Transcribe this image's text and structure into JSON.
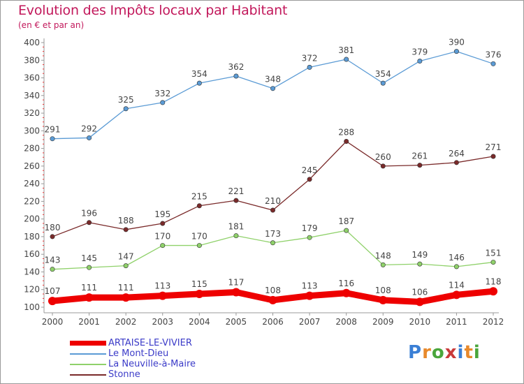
{
  "header": {
    "title": "Evolution des Impôts locaux par Habitant",
    "subtitle": "(en € et par an)"
  },
  "logo": {
    "text": "Proxiti",
    "colors": [
      "#3a7fd5",
      "#e8892b",
      "#4aa63c",
      "#c93a3a",
      "#3a7fd5",
      "#e8892b",
      "#4aa63c"
    ]
  },
  "chart_data": {
    "type": "line",
    "title": "Evolution des Impôts locaux par Habitant",
    "subtitle": "(en € et par an)",
    "xlabel": "",
    "ylabel": "",
    "x": [
      "2000",
      "2001",
      "2002",
      "2003",
      "2004",
      "2005",
      "2006",
      "2007",
      "2008",
      "2009",
      "2010",
      "2011",
      "2012"
    ],
    "ylim": [
      100,
      400
    ],
    "yticks": [
      100,
      120,
      140,
      160,
      180,
      200,
      220,
      240,
      260,
      280,
      300,
      320,
      340,
      360,
      380,
      400
    ],
    "grid": false,
    "legend_position": "bottom-left",
    "series": [
      {
        "name": "ARTAISE-LE-VIVIER",
        "color": "#ee0000",
        "bold": true,
        "values": [
          107,
          111,
          111,
          113,
          115,
          117,
          108,
          113,
          116,
          108,
          106,
          114,
          118
        ]
      },
      {
        "name": "Le Mont-Dieu",
        "color": "#5b9bd5",
        "bold": false,
        "values": [
          291,
          292,
          325,
          332,
          354,
          362,
          348,
          372,
          381,
          354,
          379,
          390,
          376
        ]
      },
      {
        "name": "La Neuville-à-Maire",
        "color": "#8fd16a",
        "bold": false,
        "values": [
          143,
          145,
          147,
          170,
          170,
          181,
          173,
          179,
          187,
          148,
          149,
          146,
          151
        ]
      },
      {
        "name": "Stonne",
        "color": "#7a2a2a",
        "bold": false,
        "values": [
          180,
          196,
          188,
          195,
          215,
          221,
          210,
          245,
          288,
          260,
          261,
          264,
          271
        ]
      }
    ]
  }
}
